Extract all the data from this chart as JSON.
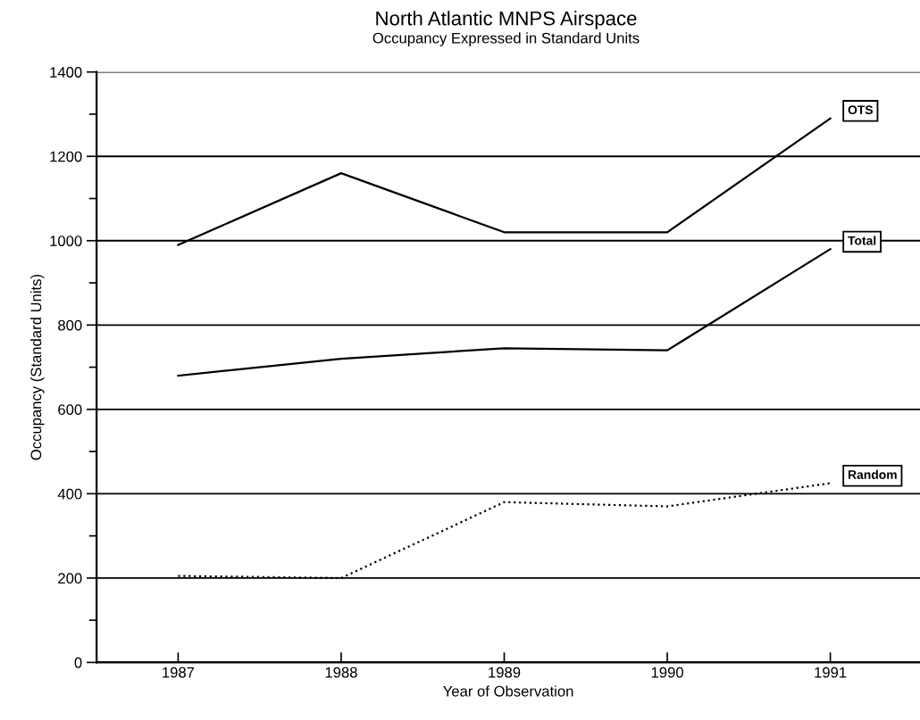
{
  "chart_data": {
    "type": "line",
    "title": "North Atlantic MNPS Airspace",
    "subtitle": "Occupancy Expressed in Standard Units",
    "xlabel": "Year of Observation",
    "ylabel": "Occupancy (Standard Units)",
    "categories": [
      "1987",
      "1988",
      "1989",
      "1990",
      "1991"
    ],
    "series": [
      {
        "name": "OTS",
        "color": "#000000",
        "line_style": "solid",
        "values": [
          990,
          1160,
          1020,
          1020,
          1290
        ]
      },
      {
        "name": "Total",
        "color": "#000000",
        "line_style": "solid",
        "values": [
          680,
          720,
          745,
          740,
          980
        ]
      },
      {
        "name": "Random",
        "color": "#000000",
        "line_style": "dotted",
        "values": [
          205,
          200,
          380,
          370,
          425
        ]
      }
    ],
    "ylim": [
      0,
      1400
    ],
    "yticks": [
      0,
      {
        "value": 100,
        "label": null
      },
      200,
      {
        "value": 300,
        "label": null
      },
      400,
      {
        "value": 500,
        "label": null
      },
      600,
      {
        "value": 700,
        "label": null
      },
      800,
      {
        "value": 900,
        "label": null
      },
      1000,
      {
        "value": 1100,
        "label": null
      },
      1200,
      {
        "value": 1300,
        "label": null
      },
      1400
    ],
    "grid": "y",
    "legend": false,
    "marker": "none"
  }
}
